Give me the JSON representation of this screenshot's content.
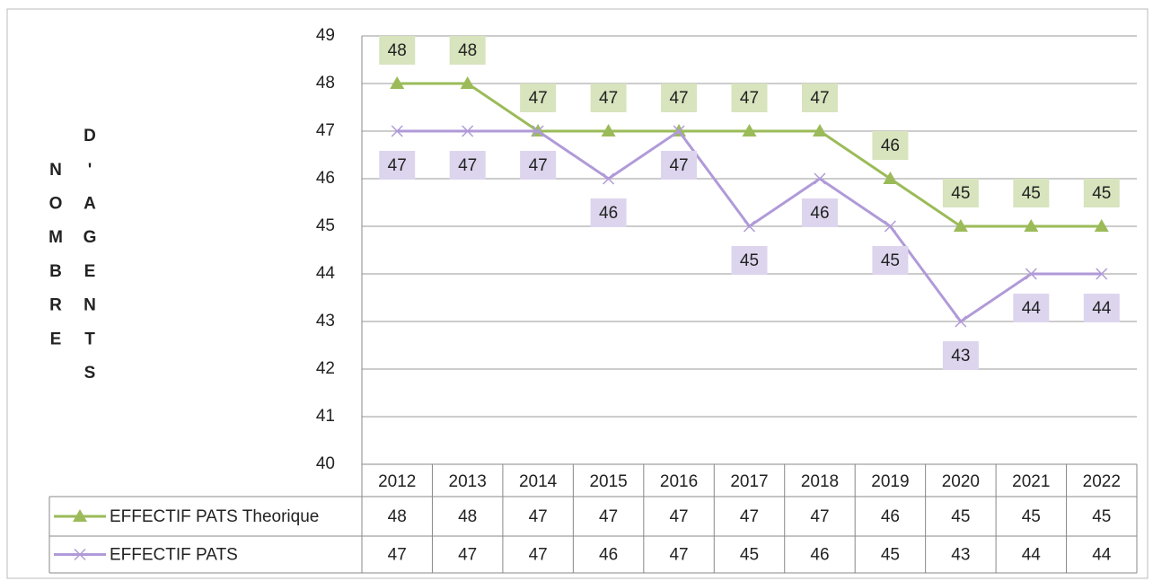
{
  "chart_data": {
    "type": "line",
    "ylabel": "NOMBRE D'AGENTS",
    "categories": [
      "2012",
      "2013",
      "2014",
      "2015",
      "2016",
      "2017",
      "2018",
      "2019",
      "2020",
      "2021",
      "2022"
    ],
    "series": [
      {
        "name": "EFFECTIF PATS Theorique",
        "color": "#9bbb59",
        "marker": "triangle",
        "values": [
          48,
          48,
          47,
          47,
          47,
          47,
          47,
          46,
          45,
          45,
          45
        ]
      },
      {
        "name": "EFFECTIF PATS",
        "color": "#b09ad8",
        "marker": "x",
        "values": [
          47,
          47,
          47,
          46,
          47,
          45,
          46,
          45,
          43,
          44,
          44
        ]
      }
    ],
    "ylim": [
      40,
      49
    ],
    "yticks": [
      40,
      41,
      42,
      43,
      44,
      45,
      46,
      47,
      48,
      49
    ],
    "grid": true,
    "data_table": true
  }
}
